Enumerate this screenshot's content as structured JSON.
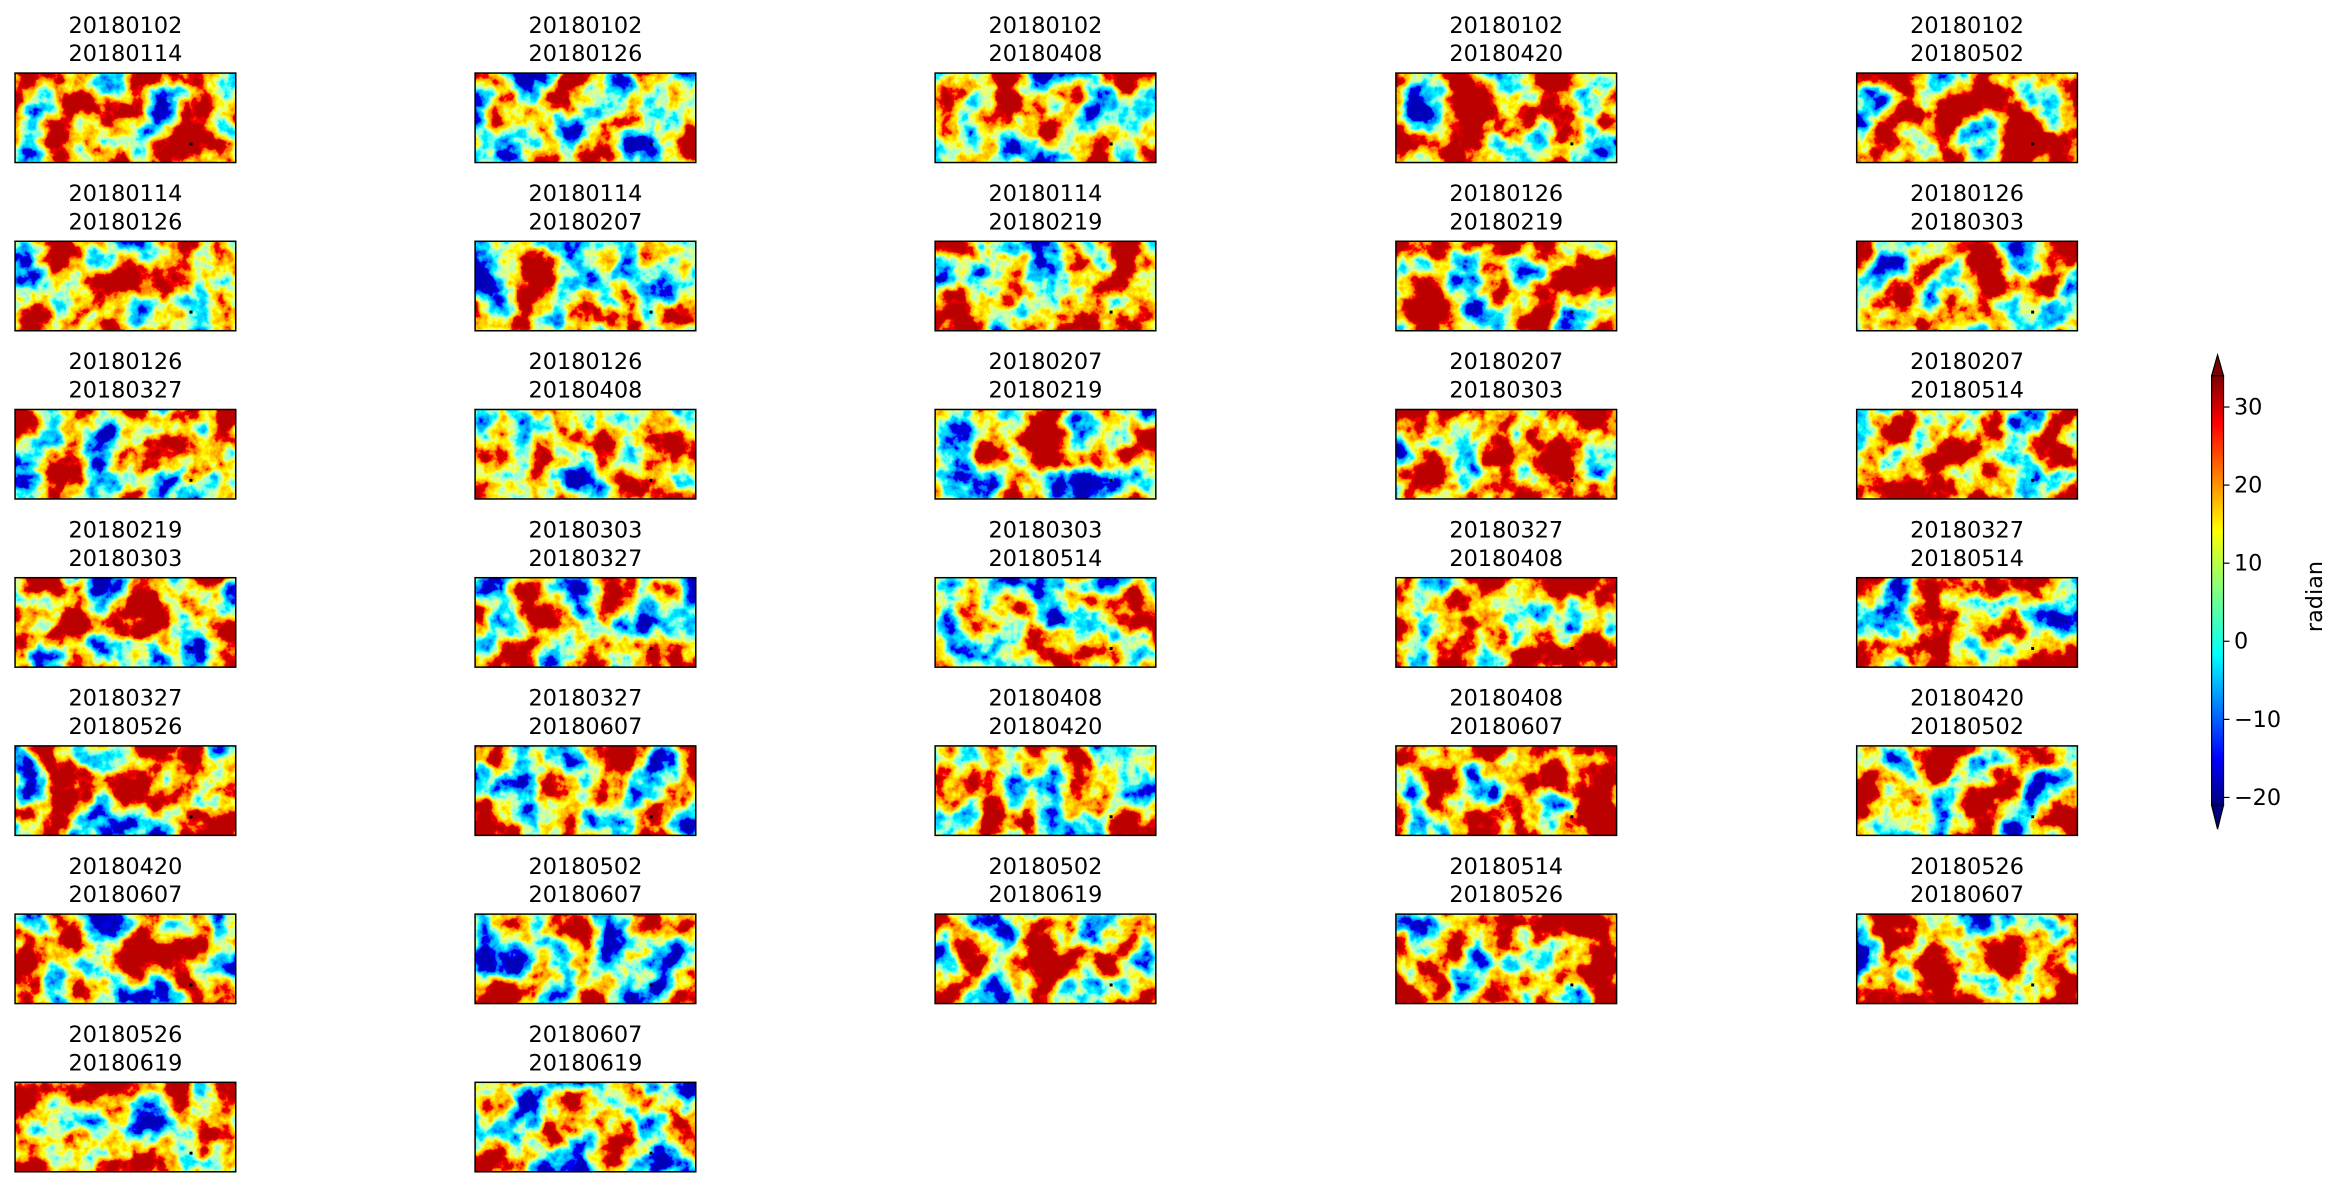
{
  "panels": [
    {
      "title": [
        "20180102",
        "20180114"
      ]
    },
    {
      "title": [
        "20180102",
        "20180126"
      ]
    },
    {
      "title": [
        "20180102",
        "20180408"
      ]
    },
    {
      "title": [
        "20180102",
        "20180420"
      ]
    },
    {
      "title": [
        "20180102",
        "20180502"
      ]
    },
    {
      "title": [
        "20180114",
        "20180126"
      ]
    },
    {
      "title": [
        "20180114",
        "20180207"
      ]
    },
    {
      "title": [
        "20180114",
        "20180219"
      ]
    },
    {
      "title": [
        "20180126",
        "20180219"
      ]
    },
    {
      "title": [
        "20180126",
        "20180303"
      ]
    },
    {
      "title": [
        "20180126",
        "20180327"
      ]
    },
    {
      "title": [
        "20180126",
        "20180408"
      ]
    },
    {
      "title": [
        "20180207",
        "20180219"
      ]
    },
    {
      "title": [
        "20180207",
        "20180303"
      ]
    },
    {
      "title": [
        "20180207",
        "20180514"
      ]
    },
    {
      "title": [
        "20180219",
        "20180303"
      ]
    },
    {
      "title": [
        "20180303",
        "20180327"
      ]
    },
    {
      "title": [
        "20180303",
        "20180514"
      ]
    },
    {
      "title": [
        "20180327",
        "20180408"
      ]
    },
    {
      "title": [
        "20180327",
        "20180514"
      ]
    },
    {
      "title": [
        "20180327",
        "20180526"
      ]
    },
    {
      "title": [
        "20180327",
        "20180607"
      ]
    },
    {
      "title": [
        "20180408",
        "20180420"
      ]
    },
    {
      "title": [
        "20180408",
        "20180607"
      ]
    },
    {
      "title": [
        "20180420",
        "20180502"
      ]
    },
    {
      "title": [
        "20180420",
        "20180607"
      ]
    },
    {
      "title": [
        "20180502",
        "20180607"
      ]
    },
    {
      "title": [
        "20180502",
        "20180619"
      ]
    },
    {
      "title": [
        "20180514",
        "20180526"
      ]
    },
    {
      "title": [
        "20180526",
        "20180607"
      ]
    },
    {
      "title": [
        "20180526",
        "20180619"
      ]
    },
    {
      "title": [
        "20180607",
        "20180619"
      ]
    }
  ],
  "colorbar": {
    "label": "radian",
    "lim": [
      -21,
      34
    ],
    "ticks": [
      {
        "value": -20,
        "label": "−20"
      },
      {
        "value": -10,
        "label": "−10"
      },
      0,
      10,
      20,
      30
    ]
  }
}
